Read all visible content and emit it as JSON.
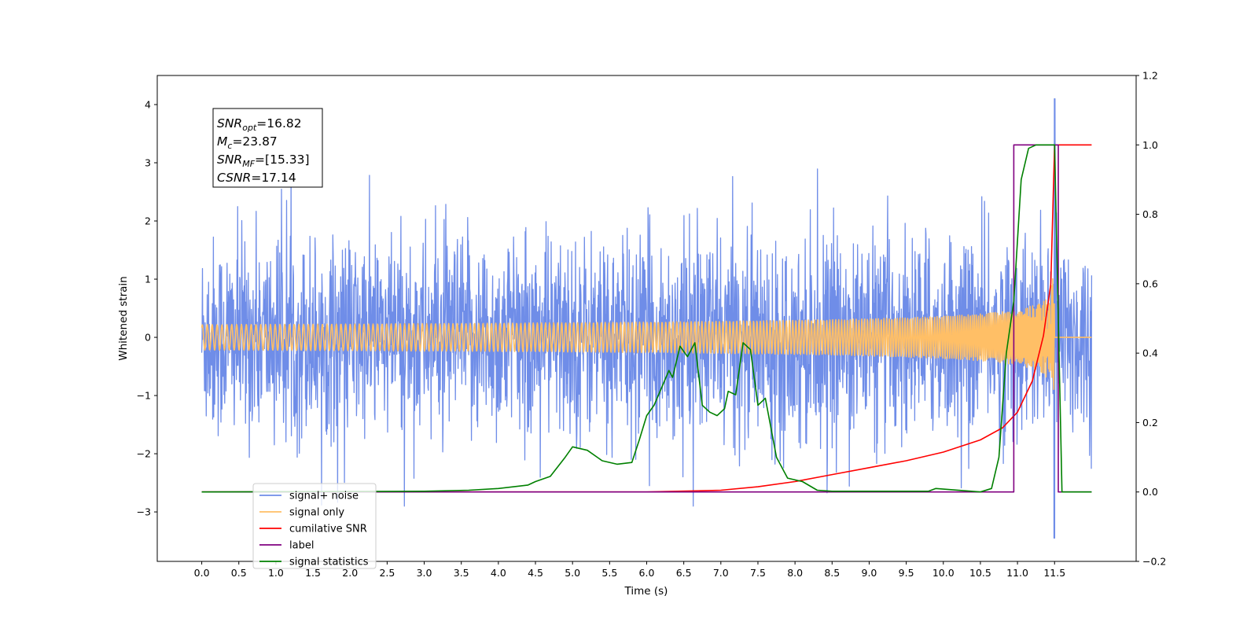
{
  "chart_data": {
    "type": "line",
    "xlabel": "Time (s)",
    "ylabel": "Whitened strain",
    "xlim": [
      -0.6,
      12.6
    ],
    "ylim": [
      -3.85,
      4.5
    ],
    "ylim_right": [
      -0.2,
      1.2
    ],
    "x_ticks": [
      "0.0",
      "0.5",
      "1.0",
      "1.5",
      "2.0",
      "2.5",
      "3.0",
      "3.5",
      "4.0",
      "4.5",
      "5.0",
      "5.5",
      "6.0",
      "6.5",
      "7.0",
      "7.5",
      "8.0",
      "8.5",
      "9.0",
      "9.5",
      "10.0",
      "10.5",
      "11.0",
      "11.5"
    ],
    "y_ticks_left": [
      "−3",
      "−2",
      "−1",
      "0",
      "1",
      "2",
      "3",
      "4"
    ],
    "y_ticks_right": [
      "−0.2",
      "0.0",
      "0.2",
      "0.4",
      "0.6",
      "0.8",
      "1.0",
      "1.2"
    ],
    "grid": false,
    "legend_position": "bottom-left",
    "stats_box": [
      {
        "main": "SNR",
        "sub": "opt",
        "value": "=16.82"
      },
      {
        "main": "M",
        "sub": "c",
        "value": "=23.87"
      },
      {
        "main": "SNR",
        "sub": "MF",
        "value": "=[15.33]"
      },
      {
        "main": "CSNR",
        "sub": "",
        "value": "=17.14"
      }
    ],
    "series": [
      {
        "name": "signal+ noise",
        "color": "#6f8de8",
        "axis": "left",
        "description_values": {
          "x_range": [
            0.0,
            12.0
          ],
          "noise_sigma": 0.85,
          "spike_max": 4.1,
          "spike_min": -3.45
        }
      },
      {
        "name": "signal only",
        "color": "#ffbf66",
        "axis": "left",
        "chirp": {
          "x_range": [
            0.0,
            11.5
          ],
          "amp_start": 0.0,
          "amp_end": 1.6,
          "merger_time": 11.5
        }
      },
      {
        "name": "cumilative SNR",
        "color": "#ff0000",
        "axis": "right",
        "x": [
          0.0,
          6.0,
          7.0,
          7.5,
          8.0,
          8.5,
          9.0,
          9.5,
          10.0,
          10.5,
          10.8,
          11.0,
          11.2,
          11.35,
          11.45,
          11.5,
          11.55,
          12.0
        ],
        "y": [
          0.0,
          0.0,
          0.005,
          0.015,
          0.03,
          0.05,
          0.07,
          0.09,
          0.115,
          0.15,
          0.185,
          0.23,
          0.32,
          0.45,
          0.6,
          1.0,
          1.0,
          1.0
        ]
      },
      {
        "name": "label",
        "color": "#800080",
        "axis": "right",
        "x": [
          0.0,
          10.95,
          10.95,
          11.55,
          11.55,
          12.0
        ],
        "y": [
          0.0,
          0.0,
          1.0,
          1.0,
          0.0,
          0.0
        ]
      },
      {
        "name": "signal statistics",
        "color": "#008000",
        "axis": "right",
        "x": [
          0.0,
          3.0,
          3.6,
          4.0,
          4.4,
          4.5,
          4.7,
          4.9,
          5.0,
          5.2,
          5.4,
          5.6,
          5.8,
          5.9,
          6.0,
          6.1,
          6.2,
          6.3,
          6.35,
          6.45,
          6.55,
          6.65,
          6.75,
          6.85,
          6.95,
          7.05,
          7.1,
          7.2,
          7.3,
          7.4,
          7.5,
          7.6,
          7.75,
          7.9,
          8.1,
          8.3,
          8.5,
          9.0,
          9.8,
          9.9,
          10.5,
          10.65,
          10.75,
          10.85,
          10.95,
          11.05,
          11.15,
          11.25,
          11.35,
          11.45,
          11.5,
          11.6,
          12.0
        ],
        "y": [
          0.0,
          0.002,
          0.005,
          0.01,
          0.02,
          0.03,
          0.045,
          0.1,
          0.13,
          0.12,
          0.09,
          0.08,
          0.085,
          0.15,
          0.22,
          0.25,
          0.3,
          0.35,
          0.33,
          0.42,
          0.39,
          0.43,
          0.25,
          0.23,
          0.22,
          0.24,
          0.29,
          0.28,
          0.43,
          0.41,
          0.25,
          0.27,
          0.1,
          0.04,
          0.03,
          0.005,
          0.002,
          0.002,
          0.002,
          0.01,
          0.0,
          0.01,
          0.1,
          0.4,
          0.55,
          0.9,
          0.99,
          1.0,
          1.0,
          1.0,
          1.0,
          0.0,
          0.0
        ]
      }
    ]
  }
}
